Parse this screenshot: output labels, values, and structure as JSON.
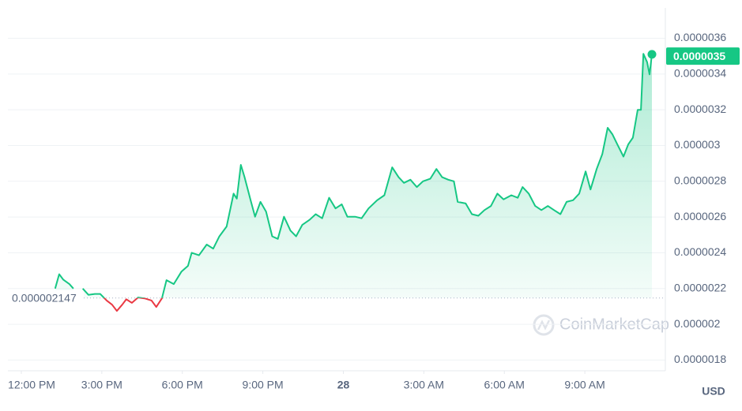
{
  "chart_data": {
    "type": "line",
    "xlim": [
      -0.5,
      24
    ],
    "ylim": [
      1.74e-06,
      3.77e-06
    ],
    "yticks": [
      1.8e-06,
      2e-06,
      2.2e-06,
      2.4e-06,
      2.6e-06,
      2.8e-06,
      3e-06,
      3.2e-06,
      3.4e-06,
      3.6e-06
    ],
    "xticks": [
      {
        "value": 0,
        "label": "12:00 PM"
      },
      {
        "value": 3,
        "label": "3:00 PM"
      },
      {
        "value": 6,
        "label": "6:00 PM"
      },
      {
        "value": 9,
        "label": "9:00 PM"
      },
      {
        "value": 12,
        "label": "28"
      },
      {
        "value": 15,
        "label": "3:00 AM"
      },
      {
        "value": 18,
        "label": "6:00 AM"
      },
      {
        "value": 21,
        "label": "9:00 AM"
      }
    ],
    "grid": true,
    "reference": 2.147e-06,
    "current_price": 3.5e-06,
    "currency": "USD",
    "watermark": "CoinMarketCap",
    "up_color": "#16c784",
    "down_color": "#ea3943",
    "x": [
      1.26,
      1.41,
      1.56,
      1.79,
      1.94,
      2.1,
      2.29,
      2.5,
      2.74,
      2.94,
      3.18,
      3.38,
      3.56,
      3.76,
      3.91,
      4.12,
      4.35,
      4.59,
      4.85,
      5.03,
      5.24,
      5.41,
      5.68,
      5.97,
      6.21,
      6.35,
      6.62,
      6.91,
      7.15,
      7.38,
      7.65,
      7.91,
      8.03,
      8.18,
      8.32,
      8.56,
      8.71,
      8.91,
      9.12,
      9.35,
      9.56,
      9.79,
      10.03,
      10.24,
      10.47,
      10.74,
      10.97,
      11.21,
      11.47,
      11.71,
      11.94,
      12.15,
      12.44,
      12.68,
      12.94,
      13.26,
      13.53,
      13.82,
      14.06,
      14.26,
      14.5,
      14.74,
      14.97,
      15.24,
      15.47,
      15.68,
      15.91,
      16.12,
      16.26,
      16.56,
      16.79,
      17.03,
      17.26,
      17.5,
      17.74,
      17.97,
      18.26,
      18.5,
      18.68,
      18.91,
      19.15,
      19.38,
      19.62,
      19.85,
      20.09,
      20.32,
      20.56,
      20.79,
      21.03,
      21.21,
      21.44,
      21.65,
      21.85,
      22.03,
      22.21,
      22.44,
      22.62,
      22.79,
      22.97,
      23.09,
      23.18,
      23.32,
      23.41,
      23.5
    ],
    "values": [
      2.2e-06,
      2.28e-06,
      2.25e-06,
      2.225e-06,
      2.2e-06,
      null,
      2.2e-06,
      2.165e-06,
      2.17e-06,
      2.17e-06,
      2.133e-06,
      2.11e-06,
      2.075e-06,
      2.11e-06,
      2.14e-06,
      2.12e-06,
      2.15e-06,
      2.145e-06,
      2.133e-06,
      2.097e-06,
      2.145e-06,
      2.247e-06,
      2.225e-06,
      2.295e-06,
      2.327e-06,
      2.4e-06,
      2.386e-06,
      2.446e-06,
      2.423e-06,
      2.492e-06,
      2.547e-06,
      2.731e-06,
      2.703e-06,
      2.892e-06,
      2.823e-06,
      2.685e-06,
      2.602e-06,
      2.685e-06,
      2.63e-06,
      2.492e-06,
      2.478e-06,
      2.602e-06,
      2.524e-06,
      2.492e-06,
      2.556e-06,
      2.584e-06,
      2.616e-06,
      2.593e-06,
      2.708e-06,
      2.648e-06,
      2.671e-06,
      2.602e-06,
      2.602e-06,
      2.593e-06,
      2.648e-06,
      2.694e-06,
      2.722e-06,
      2.878e-06,
      2.823e-06,
      2.791e-06,
      2.809e-06,
      2.768e-06,
      2.8e-06,
      2.814e-06,
      2.869e-06,
      2.823e-06,
      2.809e-06,
      2.8e-06,
      2.685e-06,
      2.676e-06,
      2.616e-06,
      2.607e-06,
      2.639e-06,
      2.662e-06,
      2.731e-06,
      2.699e-06,
      2.722e-06,
      2.708e-06,
      2.768e-06,
      2.731e-06,
      2.662e-06,
      2.639e-06,
      2.662e-06,
      2.639e-06,
      2.616e-06,
      2.685e-06,
      2.694e-06,
      2.731e-06,
      2.855e-06,
      2.754e-06,
      2.869e-06,
      2.952e-06,
      3.099e-06,
      3.062e-06,
      3.007e-06,
      2.938e-06,
      3.007e-06,
      3.044e-06,
      3.2e-06,
      3.2e-06,
      3.513e-06,
      3.467e-06,
      3.398e-06,
      3.51e-06
    ]
  }
}
